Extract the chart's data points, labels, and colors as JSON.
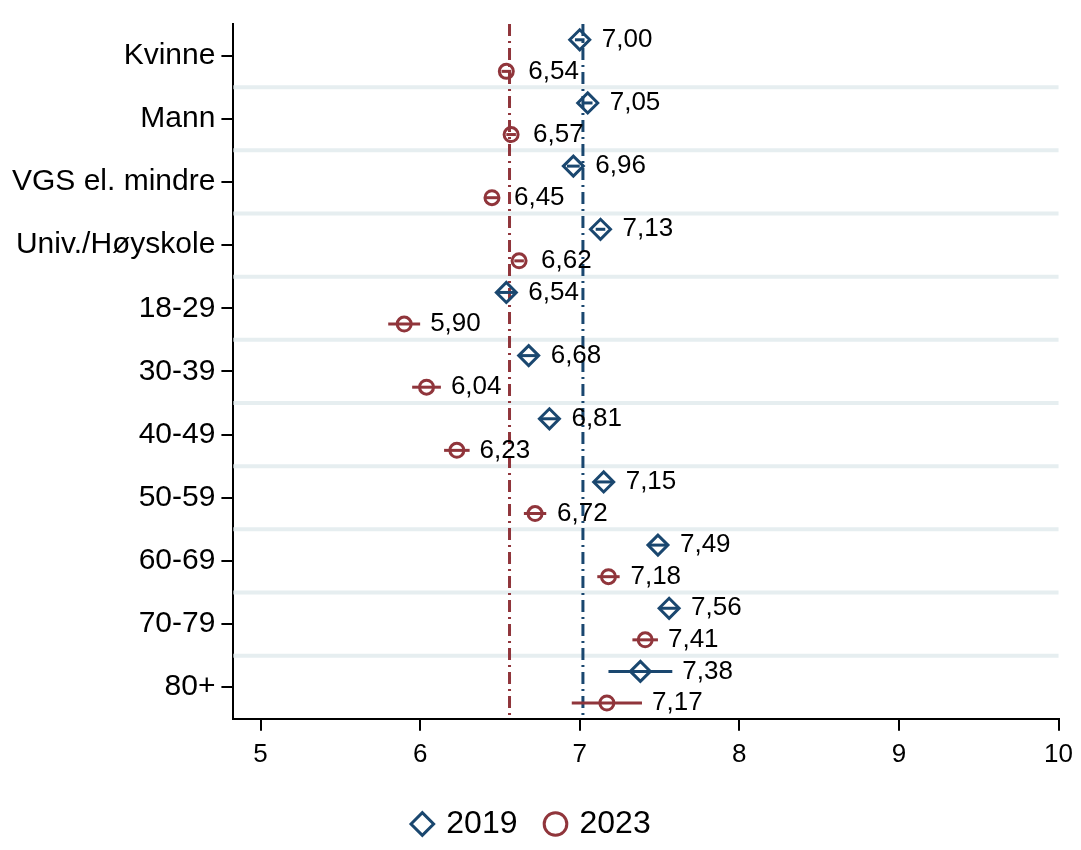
{
  "chart_data": {
    "type": "scatter",
    "orientation": "horizontal",
    "categories": [
      "Kvinne",
      "Mann",
      "VGS el. mindre",
      "Univ./Høyskole",
      "18-29",
      "30-39",
      "40-49",
      "50-59",
      "60-69",
      "70-79",
      "80+"
    ],
    "series": [
      {
        "name": "2019",
        "color": "#1a476f",
        "marker": "diamond",
        "values": [
          7.0,
          7.05,
          6.96,
          7.13,
          6.54,
          6.68,
          6.81,
          7.15,
          7.49,
          7.56,
          7.38
        ],
        "value_labels": [
          "7,00",
          "7,05",
          "6,96",
          "7,13",
          "6,54",
          "6,68",
          "6,81",
          "7,15",
          "7,49",
          "7,56",
          "7,38"
        ],
        "errors": [
          0.03,
          0.03,
          0.04,
          0.03,
          0.06,
          0.06,
          0.06,
          0.06,
          0.06,
          0.06,
          0.2
        ]
      },
      {
        "name": "2023",
        "color": "#90353b",
        "marker": "circle",
        "values": [
          6.54,
          6.57,
          6.45,
          6.62,
          5.9,
          6.04,
          6.23,
          6.72,
          7.18,
          7.41,
          7.17
        ],
        "value_labels": [
          "6,54",
          "6,57",
          "6,45",
          "6,62",
          "5,90",
          "6,04",
          "6,23",
          "6,72",
          "7,18",
          "7,41",
          "7,17"
        ],
        "errors": [
          0.03,
          0.03,
          0.04,
          0.03,
          0.1,
          0.09,
          0.08,
          0.07,
          0.07,
          0.08,
          0.22
        ]
      }
    ],
    "xlim": [
      4.83,
      10
    ],
    "xticks": [
      5,
      6,
      7,
      8,
      9,
      10
    ],
    "ref_lines": [
      {
        "axis": "x",
        "value": 6.56,
        "color": "#90353b",
        "line_style": "dashed"
      },
      {
        "axis": "x",
        "value": 7.02,
        "color": "#1a476f",
        "line_style": "dashed"
      }
    ],
    "grid": "y",
    "legend": "bottom"
  }
}
